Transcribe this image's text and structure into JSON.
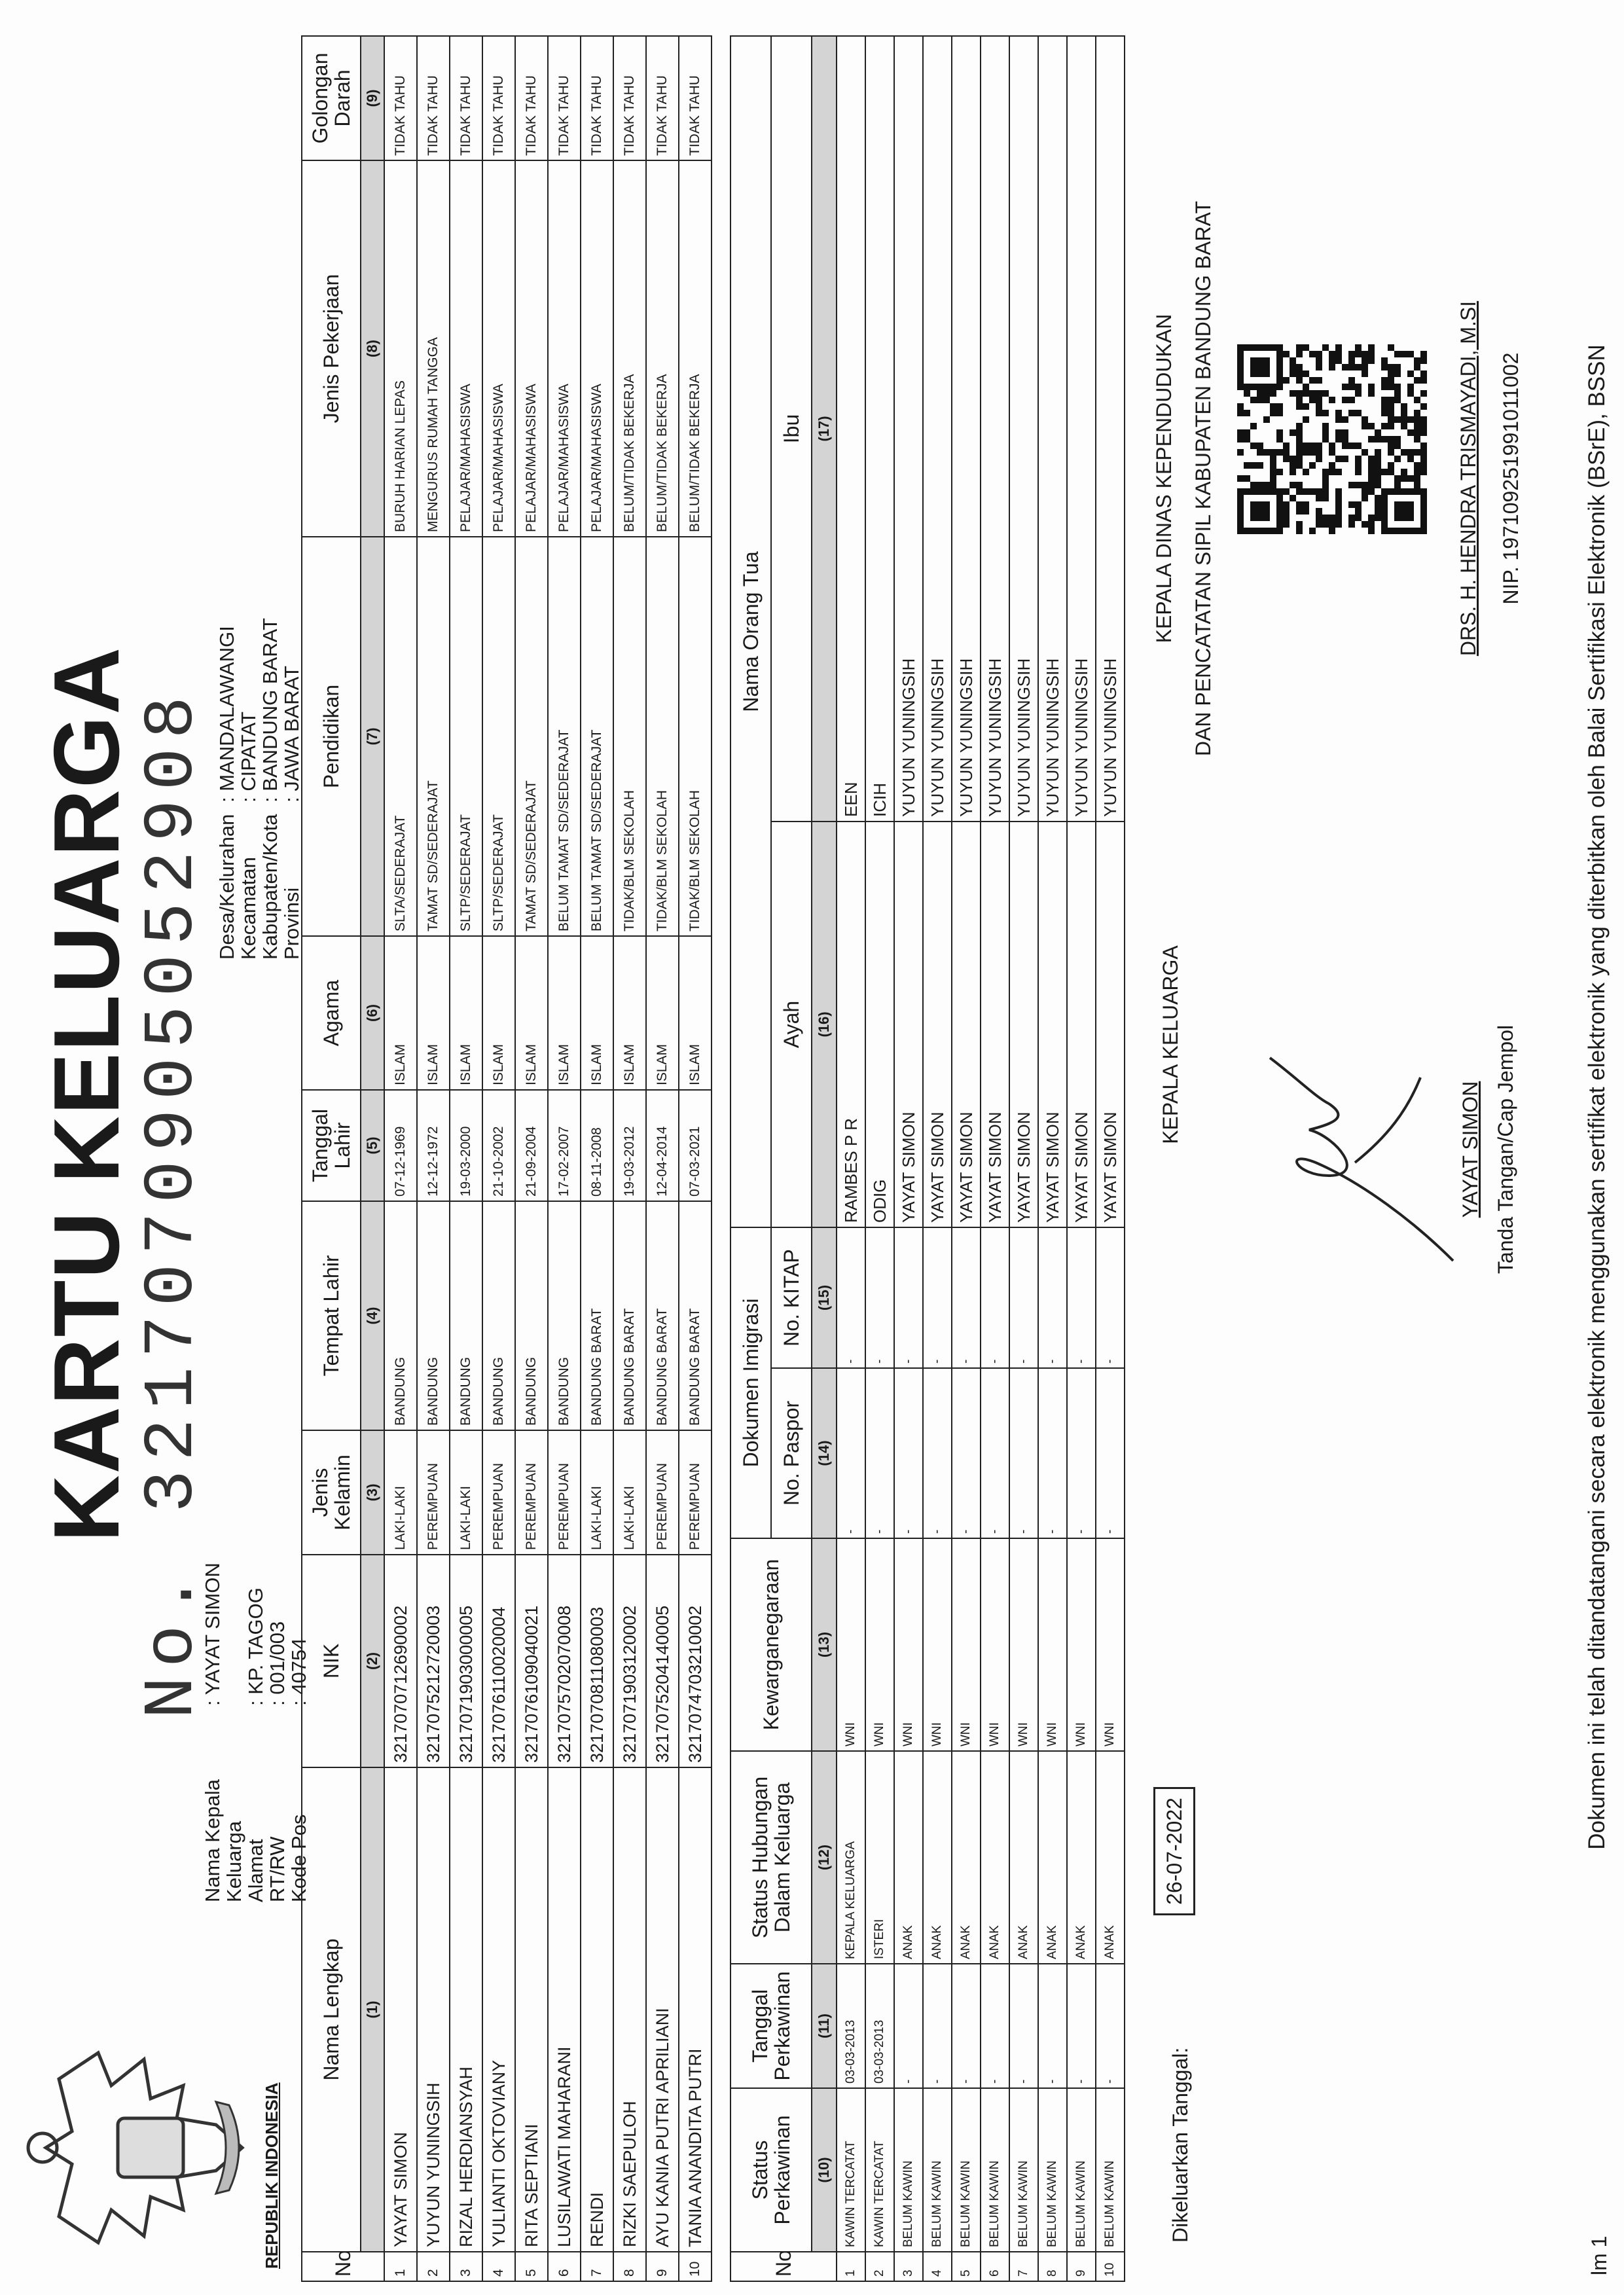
{
  "header": {
    "country": "REPUBLIK INDONESIA",
    "title": "KARTU KELUARGA",
    "number_prefix": "No.",
    "number": "3217070905052908"
  },
  "info_left": [
    {
      "label": "Nama Kepala Keluarga",
      "value": ": YAYAT SIMON"
    },
    {
      "label": "Alamat",
      "value": ": KP. TAGOG"
    },
    {
      "label": "RT/RW",
      "value": ": 001/003"
    },
    {
      "label": "Kode Pos",
      "value": ": 40754"
    }
  ],
  "info_right": [
    {
      "label": "Desa/Kelurahan",
      "value": ": MANDALAWANGI"
    },
    {
      "label": "Kecamatan",
      "value": ": CIPATAT"
    },
    {
      "label": "Kabupaten/Kota",
      "value": ": BANDUNG BARAT"
    },
    {
      "label": "Provinsi",
      "value": ": JAWA BARAT"
    }
  ],
  "table1": {
    "columns": [
      "No",
      "Nama Lengkap",
      "NIK",
      "Jenis Kelamin",
      "Tempat Lahir",
      "Tanggal Lahir",
      "Agama",
      "Pendidikan",
      "Jenis Pekerjaan",
      "Golongan Darah"
    ],
    "column_numbers": [
      "(1)",
      "(2)",
      "(3)",
      "(4)",
      "(5)",
      "(6)",
      "(7)",
      "(8)",
      "(9)"
    ],
    "rows": [
      [
        "1",
        "YAYAT SIMON",
        "3217070712690002",
        "LAKI-LAKI",
        "BANDUNG",
        "07-12-1969",
        "ISLAM",
        "SLTA/SEDERAJAT",
        "BURUH HARIAN LEPAS",
        "TIDAK TAHU"
      ],
      [
        "2",
        "YUYUN YUNINGSIH",
        "3217075212720003",
        "PEREMPUAN",
        "BANDUNG",
        "12-12-1972",
        "ISLAM",
        "TAMAT SD/SEDERAJAT",
        "MENGURUS RUMAH TANGGA",
        "TIDAK TAHU"
      ],
      [
        "3",
        "RIZAL HERDIANSYAH",
        "3217071903000005",
        "LAKI-LAKI",
        "BANDUNG",
        "19-03-2000",
        "ISLAM",
        "SLTP/SEDERAJAT",
        "PELAJAR/MAHASISWA",
        "TIDAK TAHU"
      ],
      [
        "4",
        "YULIANTI OKTOVIANY",
        "3217076110020004",
        "PEREMPUAN",
        "BANDUNG",
        "21-10-2002",
        "ISLAM",
        "SLTP/SEDERAJAT",
        "PELAJAR/MAHASISWA",
        "TIDAK TAHU"
      ],
      [
        "5",
        "RITA SEPTIANI",
        "3217076109040021",
        "PEREMPUAN",
        "BANDUNG",
        "21-09-2004",
        "ISLAM",
        "TAMAT SD/SEDERAJAT",
        "PELAJAR/MAHASISWA",
        "TIDAK TAHU"
      ],
      [
        "6",
        "LUSILAWATI MAHARANI",
        "3217075702070008",
        "PEREMPUAN",
        "BANDUNG",
        "17-02-2007",
        "ISLAM",
        "BELUM TAMAT SD/SEDERAJAT",
        "PELAJAR/MAHASISWA",
        "TIDAK TAHU"
      ],
      [
        "7",
        "RENDI",
        "3217070811080003",
        "LAKI-LAKI",
        "BANDUNG BARAT",
        "08-11-2008",
        "ISLAM",
        "BELUM TAMAT SD/SEDERAJAT",
        "PELAJAR/MAHASISWA",
        "TIDAK TAHU"
      ],
      [
        "8",
        "RIZKI SAEPULOH",
        "3217071903120002",
        "LAKI-LAKI",
        "BANDUNG BARAT",
        "19-03-2012",
        "ISLAM",
        "TIDAK/BLM SEKOLAH",
        "BELUM/TIDAK BEKERJA",
        "TIDAK TAHU"
      ],
      [
        "9",
        "AYU KANIA PUTRI APRILIANI",
        "3217075204140005",
        "PEREMPUAN",
        "BANDUNG BARAT",
        "12-04-2014",
        "ISLAM",
        "TIDAK/BLM SEKOLAH",
        "BELUM/TIDAK BEKERJA",
        "TIDAK TAHU"
      ],
      [
        "10",
        "TANIA ANANDITA PUTRI",
        "3217074703210002",
        "PEREMPUAN",
        "BANDUNG BARAT",
        "07-03-2021",
        "ISLAM",
        "TIDAK/BLM SEKOLAH",
        "BELUM/TIDAK BEKERJA",
        "TIDAK TAHU"
      ]
    ]
  },
  "table2": {
    "header_top": [
      "No",
      "Status Perkawinan",
      "Tanggal Perkawinan",
      "Status Hubungan Dalam Keluarga",
      "Kewarganegaraan",
      "Dokumen Imigrasi",
      "Nama Orang Tua"
    ],
    "header_sub": [
      "No. Paspor",
      "No. KITAP",
      "Ayah",
      "Ibu"
    ],
    "column_numbers": [
      "(10)",
      "(11)",
      "(12)",
      "(13)",
      "(14)",
      "(15)",
      "(16)",
      "(17)"
    ],
    "rows": [
      [
        "1",
        "KAWIN TERCATAT",
        "03-03-2013",
        "KEPALA KELUARGA",
        "WNI",
        "-",
        "-",
        "RAMBES P R",
        "EEN"
      ],
      [
        "2",
        "KAWIN TERCATAT",
        "03-03-2013",
        "ISTERI",
        "WNI",
        "-",
        "-",
        "ODIG",
        "ICIH"
      ],
      [
        "3",
        "BELUM KAWIN",
        "-",
        "ANAK",
        "WNI",
        "-",
        "-",
        "YAYAT SIMON",
        "YUYUN YUNINGSIH"
      ],
      [
        "4",
        "BELUM KAWIN",
        "-",
        "ANAK",
        "WNI",
        "-",
        "-",
        "YAYAT SIMON",
        "YUYUN YUNINGSIH"
      ],
      [
        "5",
        "BELUM KAWIN",
        "-",
        "ANAK",
        "WNI",
        "-",
        "-",
        "YAYAT SIMON",
        "YUYUN YUNINGSIH"
      ],
      [
        "6",
        "BELUM KAWIN",
        "-",
        "ANAK",
        "WNI",
        "-",
        "-",
        "YAYAT SIMON",
        "YUYUN YUNINGSIH"
      ],
      [
        "7",
        "BELUM KAWIN",
        "-",
        "ANAK",
        "WNI",
        "-",
        "-",
        "YAYAT SIMON",
        "YUYUN YUNINGSIH"
      ],
      [
        "8",
        "BELUM KAWIN",
        "-",
        "ANAK",
        "WNI",
        "-",
        "-",
        "YAYAT SIMON",
        "YUYUN YUNINGSIH"
      ],
      [
        "9",
        "BELUM KAWIN",
        "-",
        "ANAK",
        "WNI",
        "-",
        "-",
        "YAYAT SIMON",
        "YUYUN YUNINGSIH"
      ],
      [
        "10",
        "BELUM KAWIN",
        "-",
        "ANAK",
        "WNI",
        "-",
        "-",
        "YAYAT SIMON",
        "YUYUN YUNINGSIH"
      ]
    ]
  },
  "footer": {
    "issued_label": "Dikeluarkan Tanggal:",
    "issued_date": "26-07-2022",
    "head_title": "KEPALA KELUARGA",
    "head_name": "YAYAT SIMON",
    "head_caption": "Tanda Tangan/Cap Jempol",
    "official_title_1": "KEPALA DINAS KEPENDUDUKAN",
    "official_title_2": "DAN PENCATATAN SIPIL KABUPATEN BANDUNG BARAT",
    "official_name": "DRS. H. HENDRA TRISMAYADI, M.SI",
    "official_nip": "NIP. 197109251991011002",
    "note": "Dokumen ini telah ditandatangani secara elektronik menggunakan sertifikat elektronik yang diterbitkan oleh Balai Sertifikasi Elektronik (BSrE), BSSN",
    "page": "lm 1"
  }
}
